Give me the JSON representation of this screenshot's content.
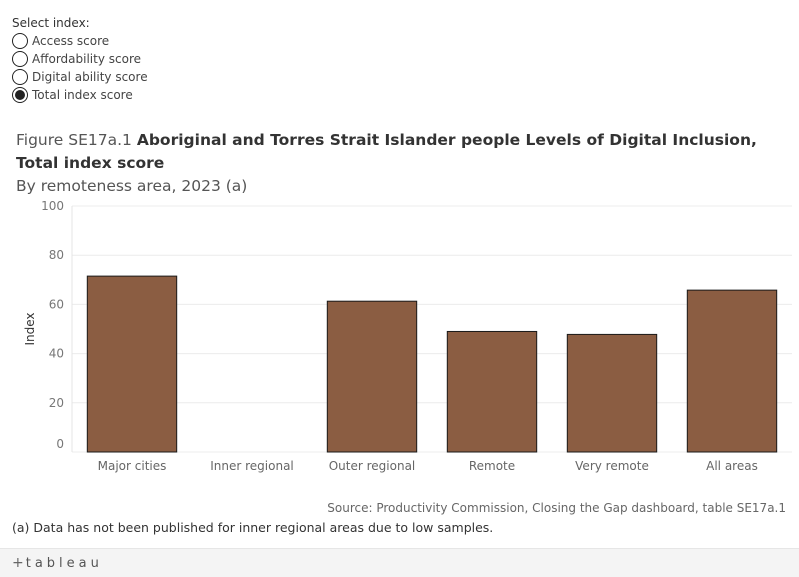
{
  "selector": {
    "title": "Select index:",
    "options": [
      {
        "label": "Access score",
        "checked": false
      },
      {
        "label": "Affordability score",
        "checked": false
      },
      {
        "label": "Digital ability score",
        "checked": false
      },
      {
        "label": "Total index score",
        "checked": true
      }
    ]
  },
  "figure": {
    "prefix": "Figure SE17a.1",
    "title": "Aboriginal and Torres Strait Islander people Levels of Digital Inclusion, Total index score",
    "subtitle": "By remoteness area, 2023 (a)"
  },
  "chart_data": {
    "type": "bar",
    "categories": [
      "Major cities",
      "Inner regional",
      "Outer regional",
      "Remote",
      "Very remote",
      "All areas"
    ],
    "values": [
      71.5,
      null,
      61.3,
      49.0,
      47.8,
      65.8
    ],
    "xlabel": "",
    "ylabel": "Index",
    "ylim": [
      0,
      100
    ],
    "yticks": [
      0,
      20,
      40,
      60,
      80,
      100
    ],
    "grid": true,
    "bar_color": "#8b5d42"
  },
  "source": "Source: Productivity Commission, Closing the Gap dashboard, table SE17a.1",
  "footnote": "(a) Data has not been published for inner regional areas due to low samples.",
  "footer": {
    "logo": "tableau",
    "logo_icon": "plus-icon"
  }
}
